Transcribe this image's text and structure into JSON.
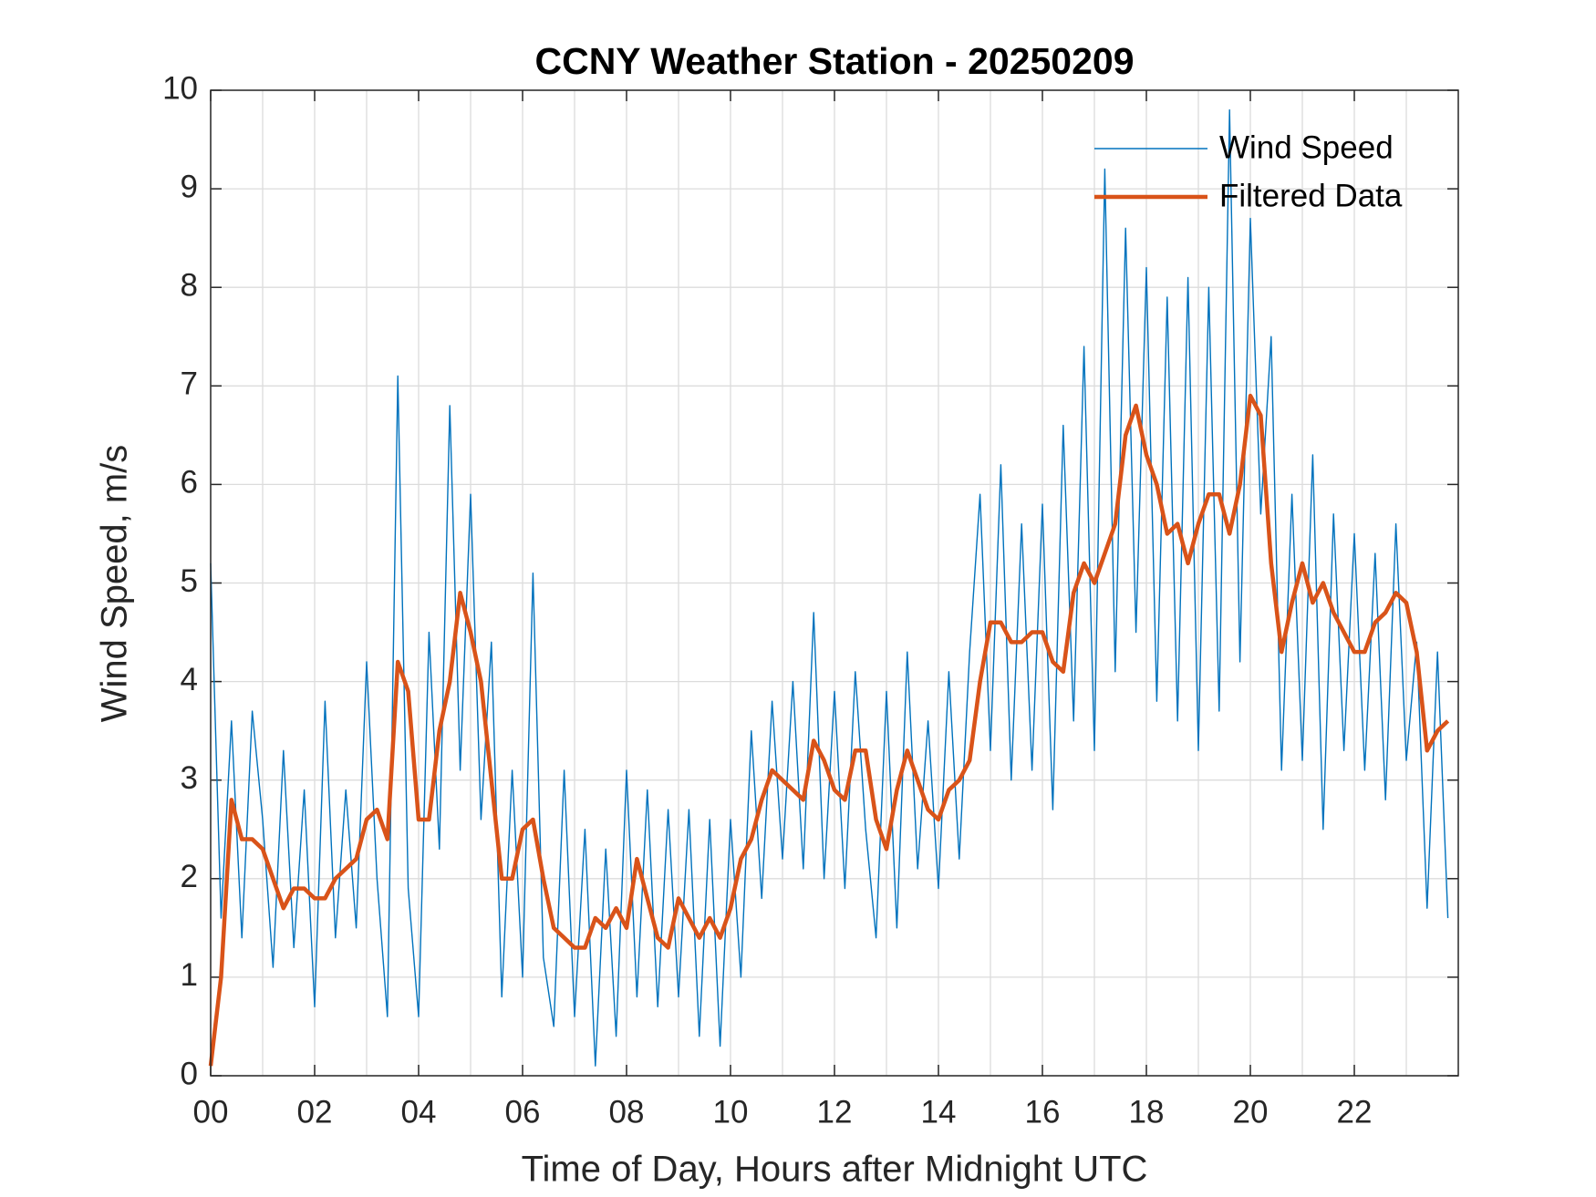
{
  "chart_data": {
    "type": "line",
    "title": "CCNY Weather Station - 20250209",
    "xlabel": "Time of Day, Hours after Midnight UTC",
    "ylabel": "Wind Speed, m/s",
    "x": [
      0,
      0.2,
      0.4,
      0.6,
      0.8,
      1,
      1.2,
      1.4,
      1.6,
      1.8,
      2,
      2.2,
      2.4,
      2.6,
      2.8,
      3,
      3.2,
      3.4,
      3.6,
      3.8,
      4,
      4.2,
      4.4,
      4.6,
      4.8,
      5,
      5.2,
      5.4,
      5.6,
      5.8,
      6,
      6.2,
      6.4,
      6.6,
      6.8,
      7,
      7.2,
      7.4,
      7.6,
      7.8,
      8,
      8.2,
      8.4,
      8.6,
      8.8,
      9,
      9.2,
      9.4,
      9.6,
      9.8,
      10,
      10.2,
      10.4,
      10.6,
      10.8,
      11,
      11.2,
      11.4,
      11.6,
      11.8,
      12,
      12.2,
      12.4,
      12.6,
      12.8,
      13,
      13.2,
      13.4,
      13.6,
      13.8,
      14,
      14.2,
      14.4,
      14.6,
      14.8,
      15,
      15.2,
      15.4,
      15.6,
      15.8,
      16,
      16.2,
      16.4,
      16.6,
      16.8,
      17,
      17.2,
      17.4,
      17.6,
      17.8,
      18,
      18.2,
      18.4,
      18.6,
      18.8,
      19,
      19.2,
      19.4,
      19.6,
      19.8,
      20,
      20.2,
      20.4,
      20.6,
      20.8,
      21,
      21.2,
      21.4,
      21.6,
      21.8,
      22,
      22.2,
      22.4,
      22.6,
      22.8,
      23,
      23.2,
      23.4,
      23.6,
      23.8
    ],
    "series": [
      {
        "name": "Wind Speed",
        "color": "#0072bd",
        "line_width": 1.4,
        "values": [
          5.2,
          1.6,
          3.6,
          1.4,
          3.7,
          2.6,
          1.1,
          3.3,
          1.3,
          2.9,
          0.7,
          3.8,
          1.4,
          2.9,
          1.5,
          4.2,
          2.0,
          0.6,
          7.1,
          1.9,
          0.6,
          4.5,
          2.3,
          6.8,
          3.1,
          5.9,
          2.6,
          4.4,
          0.8,
          3.1,
          1.0,
          5.1,
          1.2,
          0.5,
          3.1,
          0.6,
          2.5,
          0.1,
          2.3,
          0.4,
          3.1,
          0.8,
          2.9,
          0.7,
          2.7,
          0.8,
          2.7,
          0.4,
          2.6,
          0.3,
          2.6,
          1.0,
          3.5,
          1.8,
          3.8,
          2.2,
          4.0,
          2.1,
          4.7,
          2.0,
          3.9,
          1.9,
          4.1,
          2.5,
          1.4,
          3.9,
          1.5,
          4.3,
          2.1,
          3.6,
          1.9,
          4.1,
          2.2,
          4.3,
          5.9,
          3.3,
          6.2,
          3.0,
          5.6,
          3.1,
          5.8,
          2.7,
          6.6,
          3.6,
          7.4,
          3.3,
          9.2,
          4.1,
          8.6,
          4.5,
          8.2,
          3.8,
          7.9,
          3.6,
          8.1,
          3.3,
          8.0,
          3.7,
          9.8,
          4.2,
          8.7,
          5.7,
          7.5,
          3.1,
          5.9,
          3.2,
          6.3,
          2.5,
          5.7,
          3.3,
          5.5,
          3.1,
          5.3,
          2.8,
          5.6,
          3.2,
          4.4,
          1.7,
          4.3,
          1.6
        ]
      },
      {
        "name": "Filtered Data",
        "color": "#d95319",
        "line_width": 4.5,
        "values": [
          0.1,
          1.0,
          2.8,
          2.4,
          2.4,
          2.3,
          2.0,
          1.7,
          1.9,
          1.9,
          1.8,
          1.8,
          2.0,
          2.1,
          2.2,
          2.6,
          2.7,
          2.4,
          4.2,
          3.9,
          2.6,
          2.6,
          3.5,
          4.0,
          4.9,
          4.5,
          4.0,
          3.0,
          2.0,
          2.0,
          2.5,
          2.6,
          2.0,
          1.5,
          1.4,
          1.3,
          1.3,
          1.6,
          1.5,
          1.7,
          1.5,
          2.2,
          1.8,
          1.4,
          1.3,
          1.8,
          1.6,
          1.4,
          1.6,
          1.4,
          1.7,
          2.2,
          2.4,
          2.8,
          3.1,
          3.0,
          2.9,
          2.8,
          3.4,
          3.2,
          2.9,
          2.8,
          3.3,
          3.3,
          2.6,
          2.3,
          2.9,
          3.3,
          3.0,
          2.7,
          2.6,
          2.9,
          3.0,
          3.2,
          4.0,
          4.6,
          4.6,
          4.4,
          4.4,
          4.5,
          4.5,
          4.2,
          4.1,
          4.9,
          5.2,
          5.0,
          5.3,
          5.6,
          6.5,
          6.8,
          6.3,
          6.0,
          5.5,
          5.6,
          5.2,
          5.6,
          5.9,
          5.9,
          5.5,
          6.0,
          6.9,
          6.7,
          5.2,
          4.3,
          4.8,
          5.2,
          4.8,
          5.0,
          4.7,
          4.5,
          4.3,
          4.3,
          4.6,
          4.7,
          4.9,
          4.8,
          4.3,
          3.3,
          3.5,
          3.6
        ]
      }
    ],
    "xlim": [
      0,
      24
    ],
    "ylim": [
      0,
      10
    ],
    "xticks": [
      {
        "value": 0,
        "label": "00"
      },
      {
        "value": 2,
        "label": "02"
      },
      {
        "value": 4,
        "label": "04"
      },
      {
        "value": 6,
        "label": "06"
      },
      {
        "value": 8,
        "label": "08"
      },
      10,
      12,
      14,
      16,
      18,
      20,
      22
    ],
    "xminorticks": [
      1,
      3,
      5,
      7,
      9,
      11,
      13,
      15,
      17,
      19,
      21,
      23
    ],
    "yticks": [
      0,
      1,
      2,
      3,
      4,
      5,
      6,
      7,
      8,
      9,
      10
    ],
    "grid": true,
    "legend": "upper-right"
  }
}
